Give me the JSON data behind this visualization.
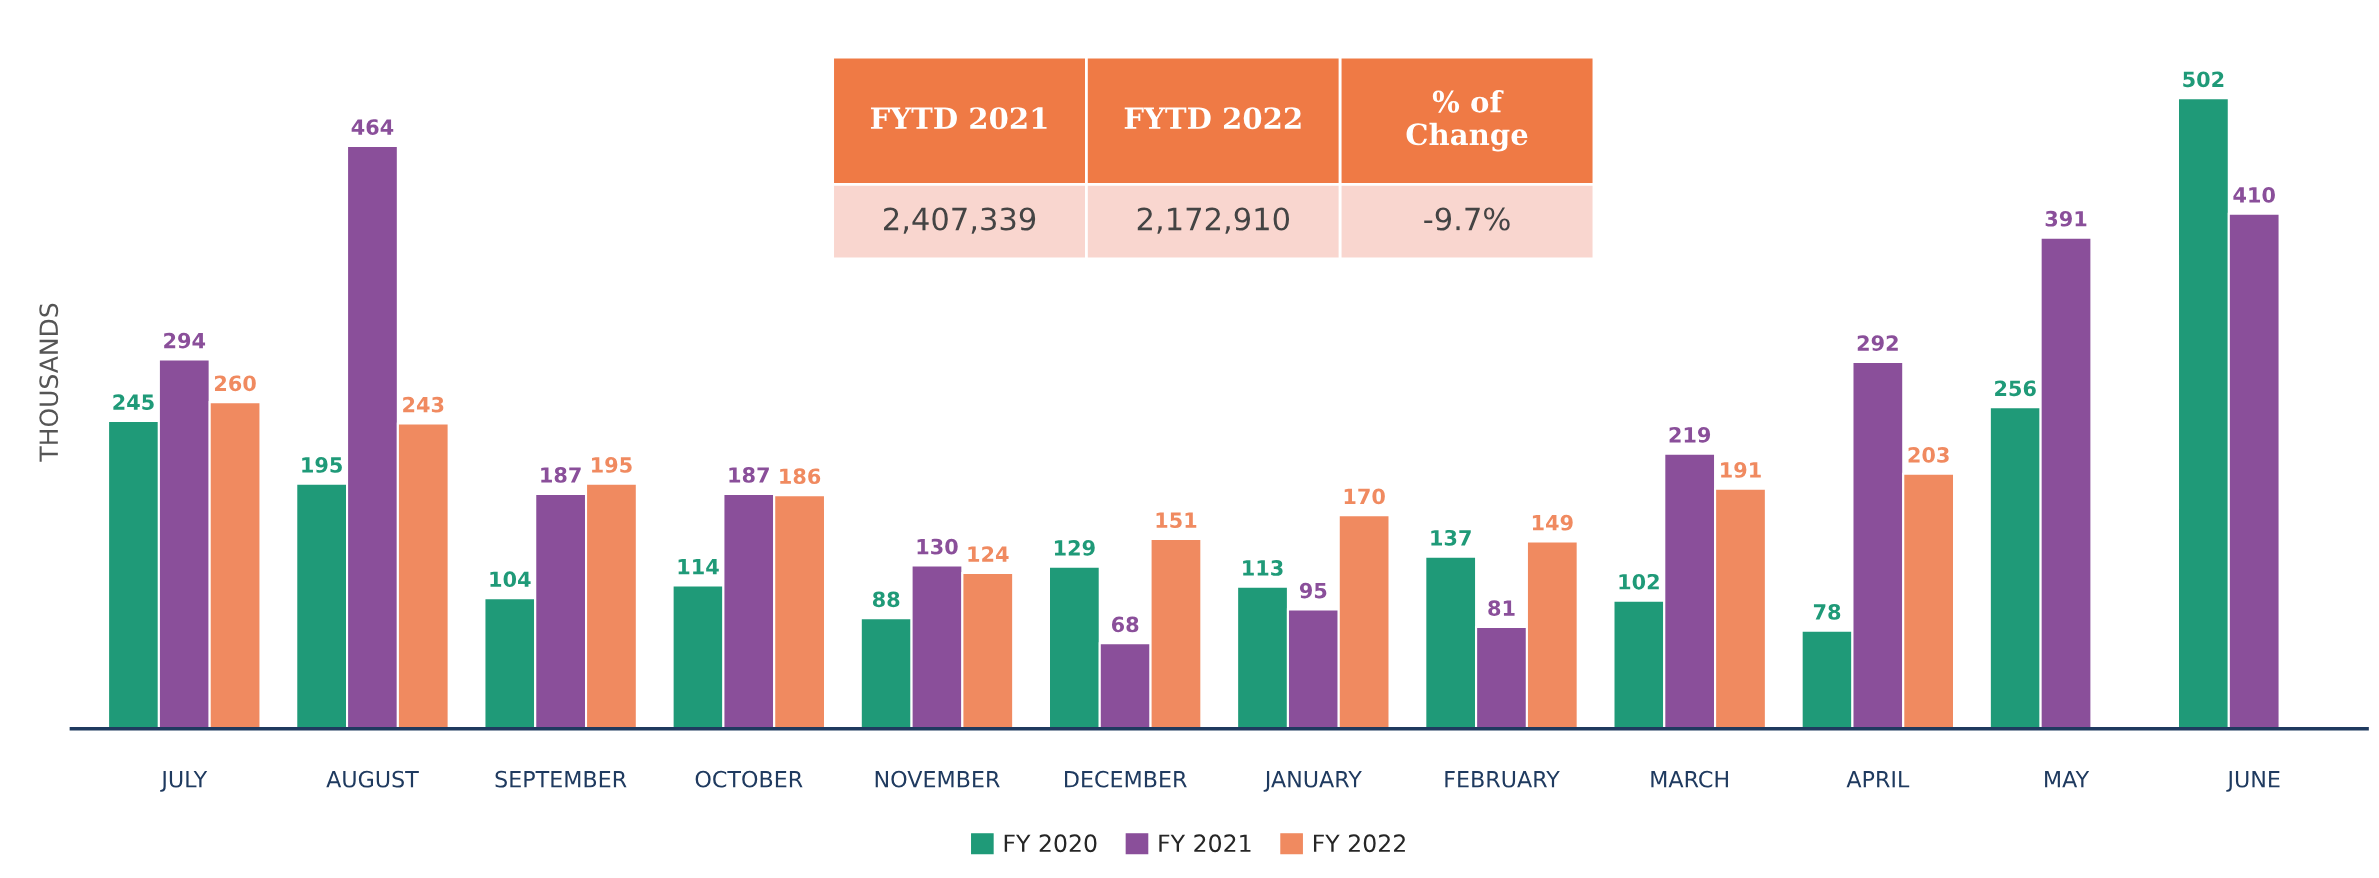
{
  "chart_data": {
    "type": "bar",
    "ylabel": "THOUSANDS",
    "categories": [
      "JULY",
      "AUGUST",
      "SEPTEMBER",
      "OCTOBER",
      "NOVEMBER",
      "DECEMBER",
      "JANUARY",
      "FEBRUARY",
      "MARCH",
      "APRIL",
      "MAY",
      "JUNE"
    ],
    "series": [
      {
        "name": "FY 2020",
        "color": "#1f9a78",
        "values": [
          245,
          195,
          104,
          114,
          88,
          129,
          113,
          137,
          102,
          78,
          256,
          502
        ]
      },
      {
        "name": "FY 2021",
        "color": "#8a4f9a",
        "values": [
          294,
          464,
          187,
          187,
          130,
          68,
          95,
          81,
          219,
          292,
          391,
          410
        ]
      },
      {
        "name": "FY 2022",
        "color": "#f08a60",
        "values": [
          260,
          243,
          195,
          186,
          124,
          151,
          170,
          149,
          191,
          203,
          null,
          null
        ]
      }
    ],
    "data_labels": true,
    "legend": "bottom",
    "grid": false,
    "tick_labels": "x",
    "annotations": [
      "FYTD 2021",
      "FYTD 2022",
      "% of\nChange",
      "2,407,339",
      "2,172,910",
      "-9.7%"
    ]
  }
}
